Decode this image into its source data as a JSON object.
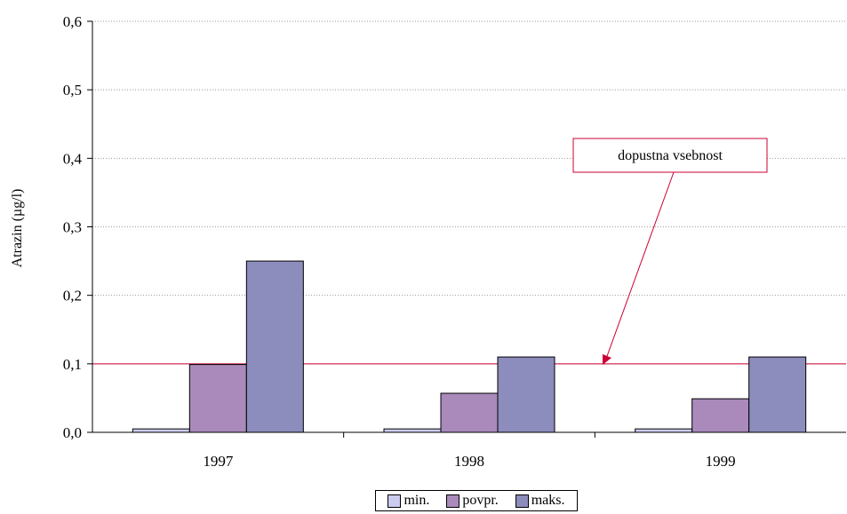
{
  "chart_data": {
    "type": "bar",
    "title": "",
    "xlabel": "",
    "ylabel": "Atrazin (µg/l)",
    "categories": [
      "1997",
      "1998",
      "1999"
    ],
    "series": [
      {
        "name": "min.",
        "color": "#ccccf0",
        "values": [
          0.005,
          0.005,
          0.005
        ]
      },
      {
        "name": "povpr.",
        "color": "#a98abb",
        "values": [
          0.099,
          0.057,
          0.049
        ]
      },
      {
        "name": "maks.",
        "color": "#8c8cbd",
        "values": [
          0.25,
          0.11,
          0.11
        ]
      }
    ],
    "ylim": [
      0,
      0.6
    ],
    "yticks": [
      "0,0",
      "0,1",
      "0,2",
      "0,3",
      "0,4",
      "0,5",
      "0,6"
    ],
    "grid": "horizontal dotted",
    "legend_position": "bottom",
    "reference_line": {
      "value": 0.1,
      "color": "#cc0033"
    },
    "annotation": {
      "text": "dopustna vsebnost",
      "color": "#cc0033"
    }
  }
}
